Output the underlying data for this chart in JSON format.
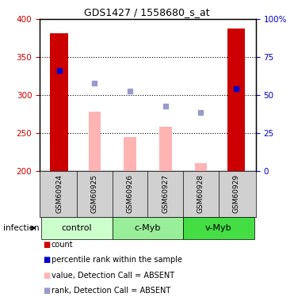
{
  "title": "GDS1427 / 1558680_s_at",
  "samples": [
    "GSM60924",
    "GSM60925",
    "GSM60926",
    "GSM60927",
    "GSM60928",
    "GSM60929"
  ],
  "groups": [
    {
      "name": "control",
      "indices": [
        0,
        1
      ],
      "color": "#ccffcc"
    },
    {
      "name": "c-Myb",
      "indices": [
        2,
        3
      ],
      "color": "#99ee99"
    },
    {
      "name": "v-Myb",
      "indices": [
        4,
        5
      ],
      "color": "#44dd44"
    }
  ],
  "ylim": [
    200,
    400
  ],
  "ylim_right": [
    0,
    100
  ],
  "yticks_left": [
    200,
    250,
    300,
    350,
    400
  ],
  "yticks_right": [
    0,
    25,
    50,
    75,
    100
  ],
  "ytick_labels_right": [
    "0",
    "25",
    "50",
    "75",
    "100%"
  ],
  "red_bar_values": [
    382,
    null,
    null,
    null,
    null,
    388
  ],
  "red_bar_color": "#cc0000",
  "pink_bar_values": [
    null,
    278,
    245,
    258,
    210,
    null
  ],
  "pink_bar_color": "#ffb3b3",
  "blue_dot_values": [
    332,
    null,
    null,
    null,
    null,
    308
  ],
  "blue_dot_color": "#0000cc",
  "purple_dot_values": [
    null,
    316,
    305,
    285,
    277,
    null
  ],
  "purple_dot_color": "#9999cc",
  "x_positions": [
    0,
    1,
    2,
    3,
    4,
    5
  ],
  "red_bar_width": 0.5,
  "pink_bar_width": 0.35,
  "infection_label": "infection",
  "legend_items": [
    {
      "label": "count",
      "color": "#cc0000"
    },
    {
      "label": "percentile rank within the sample",
      "color": "#0000cc"
    },
    {
      "label": "value, Detection Call = ABSENT",
      "color": "#ffb3b3"
    },
    {
      "label": "rank, Detection Call = ABSENT",
      "color": "#9999cc"
    }
  ],
  "tick_label_color_left": "#cc0000",
  "tick_label_color_right": "#0000cc",
  "grid_linestyle": ":",
  "grid_linewidth": 0.8,
  "title_fontsize": 9,
  "tick_fontsize": 7.5,
  "sample_fontsize": 6.5,
  "group_fontsize": 8,
  "legend_fontsize": 7,
  "legend_marker_fontsize": 7
}
